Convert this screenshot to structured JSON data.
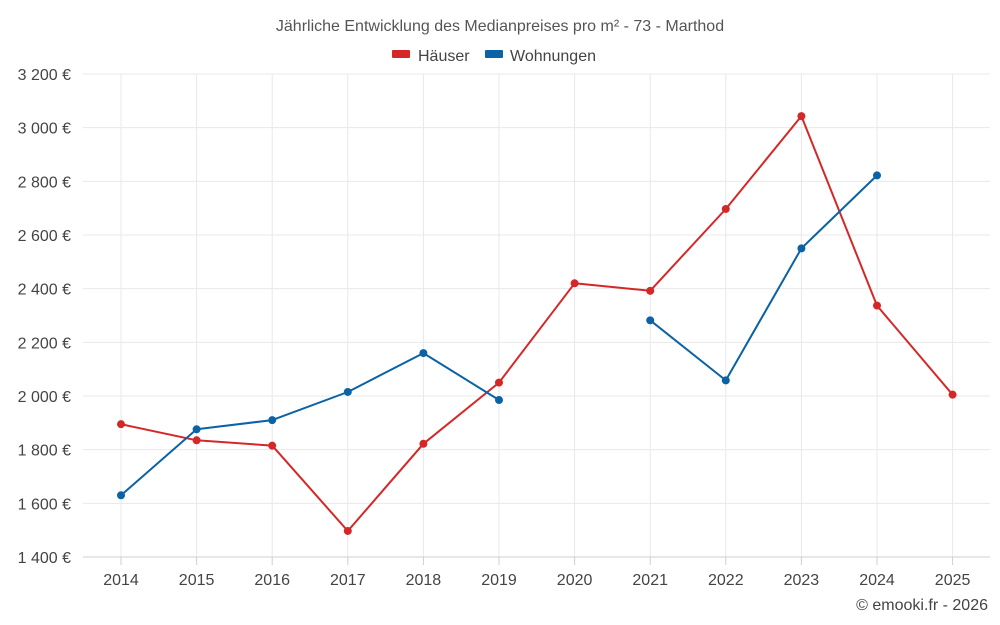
{
  "chart_data": {
    "type": "line",
    "title": "Jährliche Entwicklung des Medianpreises pro m² - 73 - Marthod",
    "categories": [
      "2014",
      "2015",
      "2016",
      "2017",
      "2018",
      "2019",
      "2020",
      "2021",
      "2022",
      "2023",
      "2024",
      "2025"
    ],
    "ylim": [
      1400,
      3200
    ],
    "yticks": [
      1400,
      1600,
      1800,
      2000,
      2200,
      2400,
      2600,
      2800,
      3000,
      3200
    ],
    "ytick_labels": [
      "1 400 €",
      "1 600 €",
      "1 800 €",
      "2 000 €",
      "2 200 €",
      "2 400 €",
      "2 600 €",
      "2 800 €",
      "3 000 €",
      "3 200 €"
    ],
    "xlabel": "",
    "ylabel": "",
    "grid": true,
    "legend_position": "top-center",
    "series": [
      {
        "name": "Häuser",
        "color": "#d62728",
        "values": [
          1895,
          1835,
          1815,
          1497,
          1822,
          2050,
          2420,
          2392,
          2697,
          3043,
          2337,
          2005
        ]
      },
      {
        "name": "Wohnungen",
        "color": "#0b62a4",
        "values": [
          1630,
          1876,
          1910,
          2015,
          2160,
          1985,
          null,
          2282,
          2058,
          2550,
          2822,
          null
        ]
      }
    ]
  },
  "credit": "© emooki.fr - 2026"
}
